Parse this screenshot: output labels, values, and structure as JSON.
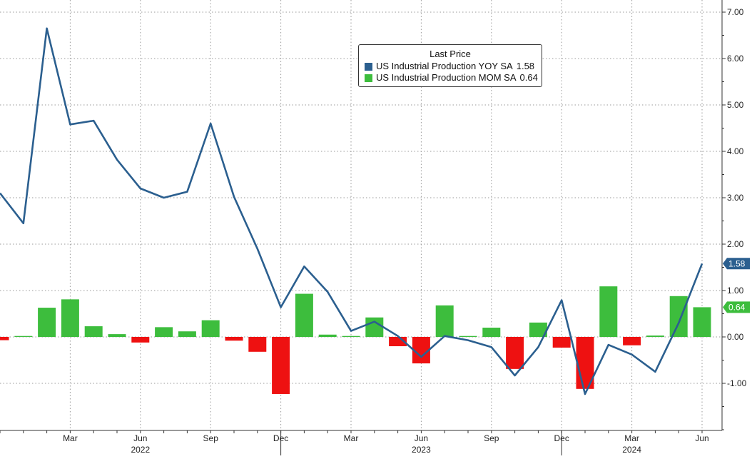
{
  "chart_data": {
    "type": "bar+line",
    "title": "",
    "legend": {
      "title": "Last Price",
      "placement": "top-center",
      "entries": [
        {
          "name": "US Industrial Production YOY SA",
          "value": "1.58",
          "color": "#2b5f8f"
        },
        {
          "name": "US Industrial Production MOM SA",
          "value": "0.64",
          "color": "#3dbd3d"
        }
      ]
    },
    "x": [
      "2021-12",
      "2022-01",
      "2022-02",
      "2022-03",
      "2022-04",
      "2022-05",
      "2022-06",
      "2022-07",
      "2022-08",
      "2022-09",
      "2022-10",
      "2022-11",
      "2022-12",
      "2023-01",
      "2023-02",
      "2023-03",
      "2023-04",
      "2023-05",
      "2023-06",
      "2023-07",
      "2023-08",
      "2023-09",
      "2023-10",
      "2023-11",
      "2023-12",
      "2024-01",
      "2024-02",
      "2024-03",
      "2024-04",
      "2024-05",
      "2024-06"
    ],
    "series": [
      {
        "name": "US Industrial Production YOY SA",
        "type": "line",
        "color": "#2b5f8f",
        "values": [
          3.1,
          2.45,
          6.65,
          4.58,
          4.66,
          3.82,
          3.2,
          3.0,
          3.13,
          4.6,
          3.02,
          1.9,
          0.64,
          1.52,
          0.97,
          0.13,
          0.33,
          0.02,
          -0.43,
          0.02,
          -0.07,
          -0.22,
          -0.83,
          -0.22,
          0.79,
          -1.23,
          -0.17,
          -0.38,
          -0.75,
          0.3,
          1.58
        ]
      },
      {
        "name": "US Industrial Production MOM SA",
        "type": "bar",
        "values": [
          -0.07,
          0.02,
          0.63,
          0.81,
          0.23,
          0.06,
          -0.12,
          0.21,
          0.12,
          0.36,
          -0.08,
          -0.32,
          -1.23,
          0.93,
          0.05,
          0.02,
          0.42,
          -0.2,
          -0.57,
          0.68,
          0.02,
          0.2,
          -0.69,
          0.31,
          -0.23,
          -1.12,
          1.09,
          -0.18,
          0.03,
          0.88,
          0.64
        ],
        "positive_color": "#3dbd3d",
        "negative_color": "#ee1111"
      }
    ],
    "y_axis": {
      "side": "right",
      "ylim": [
        -2.0,
        7.0
      ],
      "ticks": [
        "-1.00",
        "0.00",
        "1.00",
        "2.00",
        "3.00",
        "4.00",
        "5.00",
        "6.00",
        "7.00"
      ]
    },
    "x_axis": {
      "month_ticks": [
        {
          "label": "Mar",
          "x": "2022-03"
        },
        {
          "label": "Jun",
          "x": "2022-06"
        },
        {
          "label": "Sep",
          "x": "2022-09"
        },
        {
          "label": "Dec",
          "x": "2022-12"
        },
        {
          "label": "Mar",
          "x": "2023-03"
        },
        {
          "label": "Jun",
          "x": "2023-06"
        },
        {
          "label": "Sep",
          "x": "2023-09"
        },
        {
          "label": "Dec",
          "x": "2023-12"
        },
        {
          "label": "Mar",
          "x": "2024-03"
        },
        {
          "label": "Jun",
          "x": "2024-06"
        }
      ],
      "year_labels": [
        {
          "label": "2022",
          "x": "2022-06"
        },
        {
          "label": "2023",
          "x": "2023-06"
        },
        {
          "label": "2024",
          "x": "2024-03"
        }
      ],
      "year_separators": [
        "2022-12",
        "2023-12"
      ]
    },
    "grid": true,
    "last_value_tags": [
      {
        "series": "US Industrial Production YOY SA",
        "label": "1.58",
        "color": "#2b5f8f"
      },
      {
        "series": "US Industrial Production MOM SA",
        "label": "0.64",
        "color": "#3dbd3d"
      }
    ]
  }
}
